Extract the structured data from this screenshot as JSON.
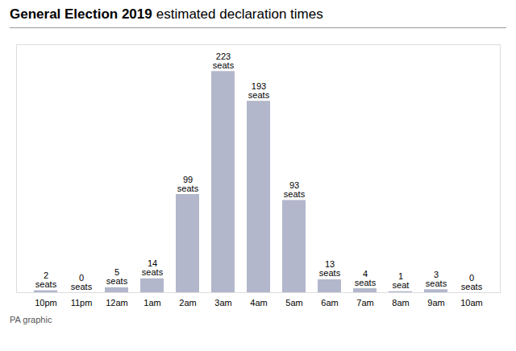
{
  "chart_data": {
    "type": "bar",
    "title": "General Election 2019",
    "subtitle": "estimated declaration times",
    "caption": "PA graphic",
    "categories": [
      "10pm",
      "11pm",
      "12am",
      "1am",
      "2am",
      "3am",
      "4am",
      "5am",
      "6am",
      "7am",
      "8am",
      "9am",
      "10am"
    ],
    "values": [
      2,
      0,
      5,
      14,
      99,
      223,
      193,
      93,
      13,
      4,
      1,
      3,
      0
    ],
    "value_labels": [
      "2\nseats",
      "0\nseats",
      "5\nseats",
      "14\nseats",
      "99\nseats",
      "223\nseats",
      "193\nseats",
      "93\nseats",
      "13\nseats",
      "4\nseats",
      "1\nseat",
      "3\nseats",
      "0\nseats"
    ],
    "color": "#b3b7cb",
    "ylim": [
      0,
      250
    ],
    "grid": false,
    "data_labels": true,
    "tick_labels": "x"
  }
}
